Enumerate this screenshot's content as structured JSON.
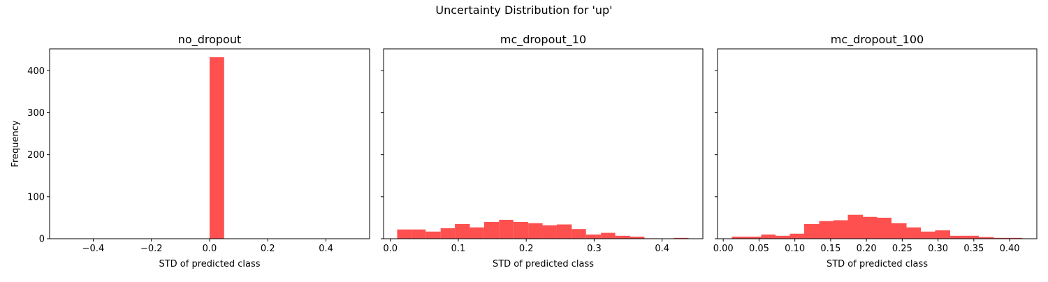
{
  "figure": {
    "suptitle": "Uncertainty Distribution for 'up'",
    "shared_ylabel": "Frequency"
  },
  "colors": {
    "bar": "#ff5050",
    "axis": "#000000",
    "background": "#ffffff"
  },
  "chart_data": [
    {
      "type": "bar",
      "title": "no_dropout",
      "xlabel": "STD of predicted class",
      "ylabel": "Frequency",
      "xlim": [
        -0.55,
        0.55
      ],
      "ylim": [
        0,
        452
      ],
      "xticks": [
        -0.4,
        -0.2,
        0.0,
        0.2,
        0.4
      ],
      "xtick_labels": [
        "−0.4",
        "−0.2",
        "0.0",
        "0.2",
        "0.4"
      ],
      "yticks": [
        0,
        100,
        200,
        300,
        400
      ],
      "ytick_labels": [
        "0",
        "100",
        "200",
        "300",
        "400"
      ],
      "grid": false,
      "bins": [
        [
          0.0,
          0.05,
          432
        ]
      ]
    },
    {
      "type": "bar",
      "title": "mc_dropout_10",
      "xlabel": "STD of predicted class",
      "ylabel": "",
      "xlim": [
        -0.01,
        0.46
      ],
      "ylim": [
        0,
        452
      ],
      "xticks": [
        0.0,
        0.1,
        0.2,
        0.3,
        0.4
      ],
      "xtick_labels": [
        "0.0",
        "0.1",
        "0.2",
        "0.3",
        "0.4"
      ],
      "yticks": [
        0,
        100,
        200,
        300,
        400
      ],
      "ytick_labels": [
        "",
        "",
        "",
        "",
        ""
      ],
      "grid": false,
      "bins": [
        [
          0.01,
          0.031,
          22
        ],
        [
          0.031,
          0.052,
          22
        ],
        [
          0.052,
          0.074,
          17
        ],
        [
          0.074,
          0.095,
          25
        ],
        [
          0.095,
          0.117,
          35
        ],
        [
          0.117,
          0.138,
          27
        ],
        [
          0.138,
          0.16,
          40
        ],
        [
          0.16,
          0.181,
          45
        ],
        [
          0.181,
          0.203,
          40
        ],
        [
          0.203,
          0.224,
          37
        ],
        [
          0.224,
          0.245,
          32
        ],
        [
          0.245,
          0.267,
          34
        ],
        [
          0.267,
          0.288,
          23
        ],
        [
          0.288,
          0.31,
          10
        ],
        [
          0.31,
          0.331,
          14
        ],
        [
          0.331,
          0.353,
          7
        ],
        [
          0.353,
          0.374,
          5
        ],
        [
          0.374,
          0.396,
          1
        ],
        [
          0.396,
          0.417,
          0
        ],
        [
          0.417,
          0.439,
          2
        ]
      ]
    },
    {
      "type": "bar",
      "title": "mc_dropout_100",
      "xlabel": "STD of predicted class",
      "ylabel": "",
      "xlim": [
        -0.008,
        0.438
      ],
      "ylim": [
        0,
        452
      ],
      "xticks": [
        0.0,
        0.05,
        0.1,
        0.15,
        0.2,
        0.25,
        0.3,
        0.35,
        0.4
      ],
      "xtick_labels": [
        "0.00",
        "0.05",
        "0.10",
        "0.15",
        "0.20",
        "0.25",
        "0.30",
        "0.35",
        "0.40"
      ],
      "yticks": [
        0,
        100,
        200,
        300,
        400
      ],
      "ytick_labels": [
        "",
        "",
        "",
        "",
        ""
      ],
      "grid": false,
      "bins": [
        [
          0.012,
          0.032,
          5
        ],
        [
          0.032,
          0.053,
          5
        ],
        [
          0.053,
          0.073,
          10
        ],
        [
          0.073,
          0.093,
          7
        ],
        [
          0.093,
          0.113,
          12
        ],
        [
          0.113,
          0.134,
          35
        ],
        [
          0.134,
          0.154,
          42
        ],
        [
          0.154,
          0.174,
          44
        ],
        [
          0.174,
          0.195,
          57
        ],
        [
          0.195,
          0.215,
          52
        ],
        [
          0.215,
          0.235,
          50
        ],
        [
          0.235,
          0.256,
          37
        ],
        [
          0.256,
          0.276,
          27
        ],
        [
          0.276,
          0.296,
          17
        ],
        [
          0.296,
          0.317,
          20
        ],
        [
          0.317,
          0.337,
          7
        ],
        [
          0.337,
          0.357,
          7
        ],
        [
          0.357,
          0.378,
          4
        ],
        [
          0.378,
          0.398,
          2
        ],
        [
          0.398,
          0.418,
          2
        ]
      ]
    }
  ]
}
